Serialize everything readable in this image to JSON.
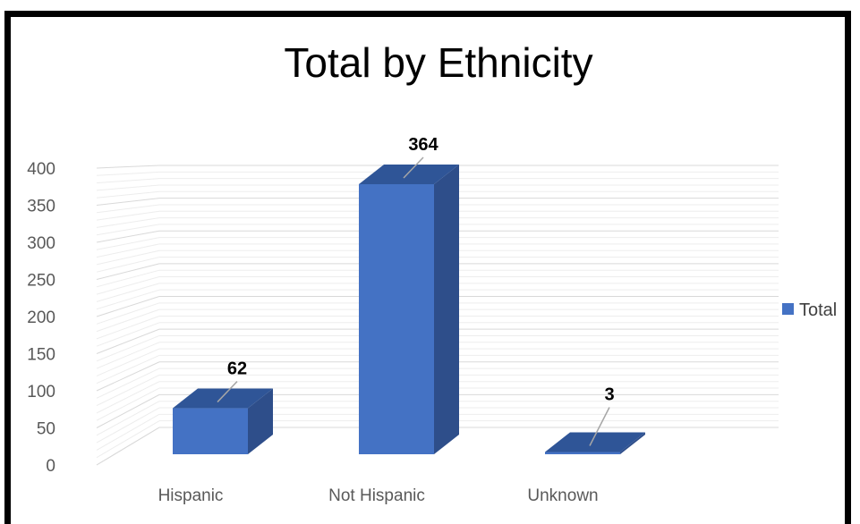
{
  "chart_data": {
    "type": "bar",
    "title": "Total by Ethnicity",
    "categories": [
      "Hispanic",
      "Not Hispanic",
      "Unknown"
    ],
    "series": [
      {
        "name": "Total",
        "values": [
          62,
          364,
          3
        ]
      }
    ],
    "ylim": [
      0,
      400
    ],
    "yticks": [
      0,
      50,
      100,
      150,
      200,
      250,
      300,
      350,
      400
    ],
    "grid": true,
    "legend": "right",
    "style": "3d-column",
    "colors": {
      "front": "#4472C4",
      "top": "#2F5597",
      "side": "#2E4E8A"
    }
  }
}
